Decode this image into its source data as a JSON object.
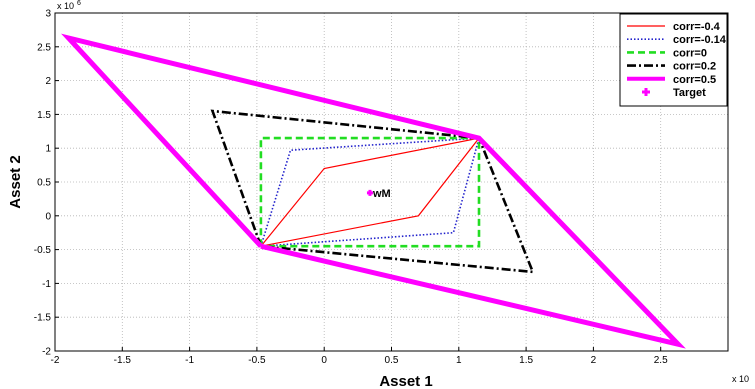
{
  "chart_data": {
    "type": "line",
    "xlabel": "Asset 1",
    "ylabel": "Asset 2",
    "x_exponent_label": "x 10",
    "y_exponent_label": "x 10",
    "y_exponent_power": "6",
    "xlim": [
      -2,
      3
    ],
    "ylim": [
      -2,
      3
    ],
    "x_unit_scale": 1000000,
    "y_unit_scale": 1000000,
    "xticks": [
      -2,
      -1.5,
      -1,
      -0.5,
      0,
      0.5,
      1,
      1.5,
      2,
      2.5
    ],
    "yticks": [
      -2,
      -1.5,
      -1,
      -0.5,
      0,
      0.5,
      1,
      1.5,
      2,
      2.5,
      3
    ],
    "xtick_labels": [
      "-2",
      "-1.5",
      "-1",
      "-0.5",
      "0",
      "0.5",
      "1",
      "1.5",
      "2",
      "2.5"
    ],
    "ytick_labels": [
      "-2",
      "-1.5",
      "-1",
      "-0.5",
      "0",
      "0.5",
      "1",
      "1.5",
      "2",
      "2.5",
      "3"
    ],
    "grid": true,
    "legend_position": "top-right",
    "series": [
      {
        "name": "corr=-0.4",
        "color": "#ff0000",
        "style": "solid",
        "width": 1.2,
        "x": [
          -0.47,
          0,
          1.15,
          0.7,
          -0.47
        ],
        "y": [
          -0.45,
          0.7,
          1.15,
          0,
          -0.45
        ]
      },
      {
        "name": "corr=-0.14",
        "color": "#2222cc",
        "style": "dotted",
        "width": 1.6,
        "x": [
          -0.47,
          -0.25,
          1.15,
          0.96,
          -0.47
        ],
        "y": [
          -0.45,
          0.97,
          1.15,
          -0.25,
          -0.45
        ]
      },
      {
        "name": "corr=0",
        "color": "#22dd22",
        "style": "dashed",
        "width": 2.6,
        "x": [
          -0.47,
          -0.47,
          1.15,
          1.15,
          -0.47
        ],
        "y": [
          -0.45,
          1.15,
          1.15,
          -0.45,
          -0.45
        ]
      },
      {
        "name": "corr=0.2",
        "color": "#000000",
        "style": "dashdot",
        "width": 2.6,
        "x": [
          -0.47,
          -0.83,
          1.15,
          1.55,
          -0.47
        ],
        "y": [
          -0.45,
          1.55,
          1.15,
          -0.83,
          -0.45
        ]
      },
      {
        "name": "corr=0.5",
        "color": "#ff00ff",
        "style": "solid",
        "width": 5,
        "x": [
          -0.47,
          -1.9,
          1.15,
          2.63,
          -0.47
        ],
        "y": [
          -0.45,
          2.63,
          1.15,
          -1.9,
          -0.45
        ]
      }
    ],
    "target": {
      "name": "Target",
      "color": "#ff00ff",
      "marker": "plus",
      "x": 0.34,
      "y": 0.34,
      "label": "wM"
    }
  }
}
